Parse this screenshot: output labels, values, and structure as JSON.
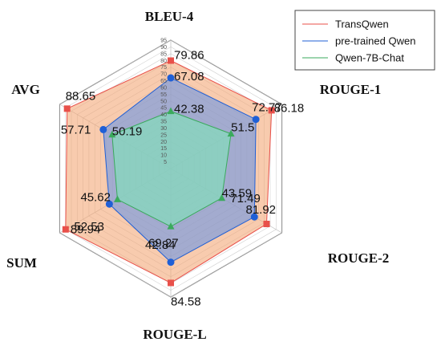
{
  "chart_data": {
    "type": "radar",
    "axes": [
      "BLEU-4",
      "ROUGE-1",
      "ROUGE-2",
      "ROUGE-L",
      "SUM",
      "AVG"
    ],
    "rlim": [
      0,
      95
    ],
    "ticks": [
      "5",
      "10",
      "15",
      "20",
      "25",
      "30",
      "35",
      "40",
      "45",
      "50",
      "55",
      "60",
      "65",
      "70",
      "75",
      "80",
      "85",
      "90",
      "95"
    ],
    "grid": true,
    "legend_position": "top-right",
    "series": [
      {
        "name": "TransQwen",
        "values": [
          79.86,
          86.18,
          81.92,
          84.58,
          89.94,
          88.65
        ],
        "labels": [
          "79.86",
          "86.18",
          "81.92",
          "84.58",
          "89.94",
          "88.65"
        ],
        "color": "#e8504a",
        "fill": "#f4a978",
        "marker": "square"
      },
      {
        "name": "pre-trained Qwen",
        "values": [
          67.08,
          72.77,
          71.49,
          69.27,
          52.53,
          57.71
        ],
        "labels": [
          "67.08",
          "72.77",
          "71.49",
          "69.27",
          "52.53",
          "57.71"
        ],
        "color": "#1f5fd6",
        "fill": "#6a96e4",
        "marker": "circle"
      },
      {
        "name": "Qwen-7B-Chat",
        "values": [
          42.38,
          51.5,
          43.59,
          42.84,
          45.62,
          50.19
        ],
        "labels": [
          "42.38",
          "51.5",
          "43.59",
          "42.84",
          "45.62",
          "50.19"
        ],
        "color": "#3aaa5c",
        "fill": "#7fe6b8",
        "marker": "triangle"
      }
    ]
  }
}
